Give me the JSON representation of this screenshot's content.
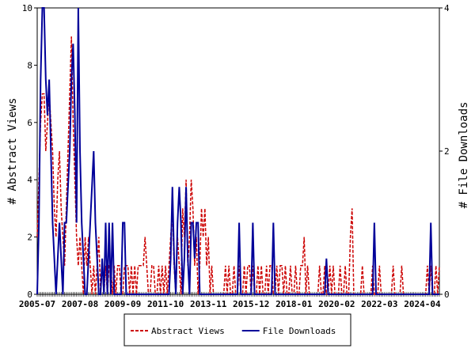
{
  "chart_data": {
    "type": "line",
    "categories": [
      "2005-07",
      null,
      null,
      null,
      null,
      null,
      null,
      null,
      null,
      null,
      null,
      null,
      null,
      null,
      null,
      null,
      null,
      null,
      null,
      null,
      null,
      null,
      null,
      null,
      null,
      "2007-08",
      null,
      null,
      null,
      null,
      null,
      null,
      null,
      null,
      null,
      null,
      null,
      null,
      null,
      null,
      null,
      null,
      null,
      null,
      null,
      null,
      null,
      null,
      null,
      null,
      "2009-09",
      null,
      null,
      null,
      null,
      null,
      null,
      null,
      null,
      null,
      null,
      null,
      null,
      null,
      null,
      null,
      null,
      null,
      null,
      null,
      null,
      null,
      null,
      null,
      null,
      "2011-10",
      null,
      null,
      null,
      null,
      null,
      null,
      null,
      null,
      null,
      null,
      null,
      null,
      null,
      null,
      null,
      null,
      null,
      null,
      null,
      null,
      null,
      null,
      null,
      null,
      "2013-11",
      null,
      null,
      null,
      null,
      null,
      null,
      null,
      null,
      null,
      null,
      null,
      null,
      null,
      null,
      null,
      null,
      null,
      null,
      null,
      null,
      null,
      null,
      null,
      null,
      "2015-12",
      null,
      null,
      null,
      null,
      null,
      null,
      null,
      null,
      null,
      null,
      null,
      null,
      null,
      null,
      null,
      null,
      null,
      null,
      null,
      null,
      null,
      null,
      null,
      null,
      "2018-01",
      null,
      null,
      null,
      null,
      null,
      null,
      null,
      null,
      null,
      null,
      null,
      null,
      null,
      null,
      null,
      null,
      null,
      null,
      null,
      null,
      null,
      null,
      null,
      null,
      "2020-02",
      null,
      null,
      null,
      null,
      null,
      null,
      null,
      null,
      null,
      null,
      null,
      null,
      null,
      null,
      null,
      null,
      null,
      null,
      null,
      null,
      null,
      null,
      null,
      null,
      "2022-03",
      null,
      null,
      null,
      null,
      null,
      null,
      null,
      null,
      null,
      null,
      null,
      null,
      null,
      null,
      null,
      null,
      null,
      null,
      null,
      null,
      null,
      null,
      null,
      null,
      "2024-04",
      null,
      null,
      null,
      null,
      null,
      null,
      null,
      null,
      null,
      null
    ],
    "series": [
      {
        "name": "Abstract Views",
        "color": "#cc0000",
        "dashed": true,
        "values": [
          2,
          4,
          6,
          7,
          7,
          5,
          6,
          7,
          6,
          5,
          3,
          2,
          4,
          5,
          3,
          2,
          1,
          3,
          5,
          7,
          9,
          6,
          4,
          2,
          1,
          2,
          1,
          0,
          2,
          1,
          2,
          1,
          0,
          1,
          0,
          1,
          2,
          0,
          1,
          0,
          1,
          0,
          1,
          1,
          0,
          1,
          0,
          1,
          1,
          0,
          0,
          1,
          1,
          1,
          0,
          1,
          0,
          1,
          0,
          1,
          1,
          1,
          1,
          2,
          1,
          0,
          0,
          1,
          1,
          0,
          0,
          1,
          0,
          1,
          0,
          1,
          0,
          1,
          2,
          3,
          1,
          0,
          2,
          1,
          0,
          3,
          2,
          4,
          1,
          2,
          4,
          3,
          1,
          2,
          0,
          1,
          3,
          2,
          3,
          1,
          2,
          0,
          1,
          0,
          0,
          0,
          0,
          0,
          0,
          0,
          1,
          0,
          1,
          0,
          0,
          1,
          0,
          0,
          1,
          0,
          0,
          1,
          0,
          1,
          1,
          0,
          1,
          0,
          0,
          1,
          0,
          1,
          0,
          0,
          1,
          0,
          1,
          1,
          0,
          0,
          1,
          0,
          1,
          1,
          0,
          1,
          0,
          0,
          1,
          0,
          0,
          1,
          0,
          0,
          1,
          1,
          2,
          0,
          1,
          0,
          0,
          0,
          0,
          0,
          0,
          1,
          0,
          0,
          1,
          0,
          0,
          1,
          0,
          1,
          0,
          0,
          0,
          1,
          0,
          0,
          1,
          0,
          0,
          2,
          3,
          0,
          0,
          0,
          0,
          0,
          1,
          0,
          0,
          0,
          0,
          0,
          1,
          0,
          0,
          0,
          1,
          0,
          0,
          0,
          0,
          0,
          0,
          0,
          1,
          0,
          0,
          0,
          0,
          1,
          0,
          0,
          0,
          0,
          0,
          0,
          0,
          0,
          0,
          0,
          0,
          0,
          0,
          0,
          1,
          0,
          1,
          0,
          0,
          1,
          0,
          1
        ]
      },
      {
        "name": "File Downloads",
        "color": "#000099",
        "dashed": false,
        "axis": "y2",
        "values": [
          0,
          1,
          3,
          4,
          4,
          3,
          2.5,
          3,
          2,
          1,
          0.5,
          0,
          0.5,
          1,
          0.5,
          0,
          1,
          1,
          1.5,
          2,
          3,
          3.5,
          2.5,
          1,
          4,
          2,
          1,
          0.5,
          0,
          0,
          0.5,
          1,
          1.5,
          2,
          1,
          0.5,
          0,
          0,
          0.5,
          0,
          1,
          0,
          1,
          0,
          1,
          0,
          0,
          0,
          0,
          0,
          1,
          1,
          0,
          0,
          0,
          0,
          0,
          0,
          0,
          0,
          0,
          0,
          0,
          0,
          0,
          0,
          0,
          0,
          0,
          0,
          0,
          0,
          0,
          0,
          0,
          0,
          0,
          0,
          0.5,
          1.5,
          0.5,
          0,
          1,
          1.5,
          1,
          0,
          0.5,
          1.5,
          0.5,
          0,
          1,
          1,
          0.5,
          1,
          1,
          0,
          0,
          0,
          0,
          0,
          0,
          0,
          0,
          0,
          0,
          0,
          0,
          0,
          0,
          0,
          0,
          0,
          0,
          0,
          0,
          0,
          0,
          0,
          1,
          0,
          0,
          0,
          0,
          0,
          0,
          0,
          1,
          0,
          0,
          0,
          0,
          0,
          0,
          0,
          0,
          0,
          0,
          0,
          1,
          0,
          0,
          0,
          0,
          0,
          0,
          0,
          0,
          0,
          0,
          0,
          0,
          0,
          0,
          0,
          0,
          0,
          0,
          0,
          0,
          0,
          0,
          0,
          0,
          0,
          0,
          0,
          0,
          0,
          0,
          0.5,
          0,
          0,
          0,
          0,
          0,
          0,
          0,
          0,
          0,
          0,
          0,
          0,
          0,
          0,
          0,
          0,
          0,
          0,
          0,
          0,
          0,
          0,
          0,
          0,
          0,
          0,
          0,
          1,
          0,
          0,
          0,
          0,
          0,
          0,
          0,
          0,
          0,
          0,
          0,
          0,
          0,
          0,
          0,
          0,
          0,
          0,
          0,
          0,
          0,
          0,
          0,
          0,
          0,
          0,
          0,
          0,
          0,
          0,
          0,
          0,
          1,
          0,
          0,
          0,
          0,
          0
        ]
      }
    ],
    "y_label": "# Abstract Views",
    "y2_label": "# File Downloads",
    "ylim": [
      0,
      10
    ],
    "yticks": [
      0,
      2,
      4,
      6,
      8,
      10
    ],
    "y2lim": [
      0,
      4
    ],
    "y2ticks": [
      0,
      2,
      4
    ],
    "legend": "bottom"
  }
}
